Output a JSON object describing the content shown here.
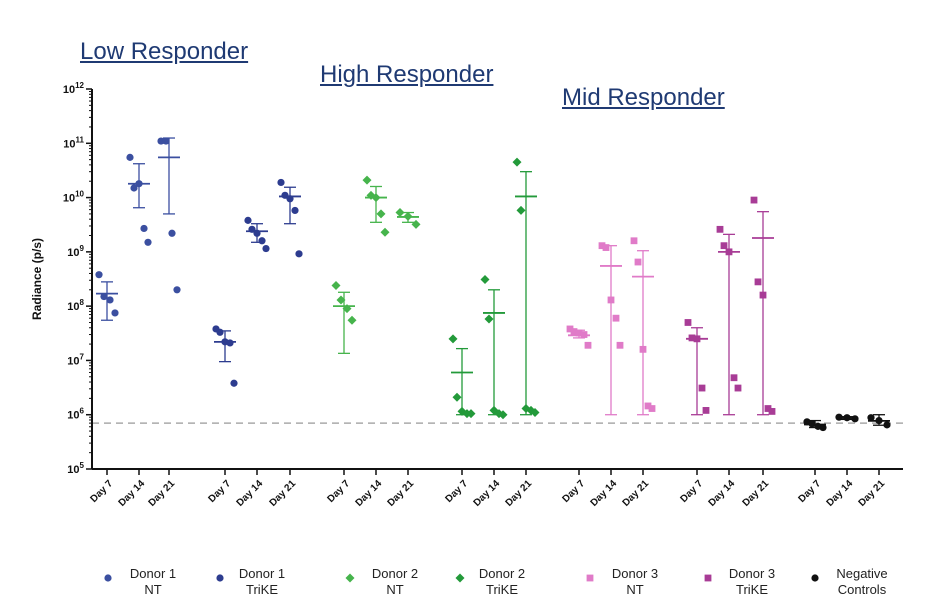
{
  "responders": [
    "Low Responder",
    "High Responder",
    "Mid Responder"
  ],
  "chart_data": {
    "type": "scatter",
    "ylabel": "Radiance (p/s)",
    "yscale": "log",
    "ylim": [
      100000,
      1000000000000
    ],
    "ytick_labels": [
      {
        "value": 100000,
        "base": "10",
        "exp": "5"
      },
      {
        "value": 1000000,
        "base": "10",
        "exp": "6"
      },
      {
        "value": 10000000,
        "base": "10",
        "exp": "7"
      },
      {
        "value": 100000000,
        "base": "10",
        "exp": "8"
      },
      {
        "value": 1000000000,
        "base": "10",
        "exp": "9"
      },
      {
        "value": 10000000000,
        "base": "10",
        "exp": "10"
      },
      {
        "value": 100000000000,
        "base": "10",
        "exp": "11"
      },
      {
        "value": 1000000000000,
        "base": "10",
        "exp": "12"
      }
    ],
    "threshold": 700000,
    "day_labels": [
      "Day 7",
      "Day 14",
      "Day 21"
    ],
    "series": [
      {
        "name": "Donor 1 NT",
        "legend": [
          "Donor 1",
          "NT"
        ],
        "color": "#3B4FA0",
        "marker": "circle",
        "groups": [
          {
            "day": "Day 7",
            "points": [
              380000000,
              150000000,
              130000000,
              75000000
            ],
            "mean": 170000000,
            "err": [
              55000000,
              280000000
            ]
          },
          {
            "day": "Day 14",
            "points": [
              55000000000,
              15000000000,
              18000000000,
              2700000000,
              1500000000
            ],
            "mean": 18000000000,
            "err": [
              6500000000,
              42000000000
            ]
          },
          {
            "day": "Day 21",
            "points": [
              110000000000,
              110000000000,
              2200000000,
              200000000
            ],
            "mean": 55000000000,
            "err": [
              5000000000,
              125000000000
            ]
          }
        ]
      },
      {
        "name": "Donor 1 TriKE",
        "legend": [
          "Donor 1",
          "TriKE"
        ],
        "color": "#2D3C8F",
        "marker": "circle",
        "groups": [
          {
            "day": "Day 7",
            "points": [
              38000000,
              33000000,
              22000000,
              21000000,
              3800000
            ],
            "mean": 22000000,
            "err": [
              9500000,
              35000000
            ]
          },
          {
            "day": "Day 14",
            "points": [
              3800000000,
              2600000000,
              2200000000,
              1600000000,
              1150000000
            ],
            "mean": 2400000000,
            "err": [
              1500000000,
              3300000000
            ]
          },
          {
            "day": "Day 21",
            "points": [
              19000000000,
              11000000000,
              9500000000,
              5800000000,
              920000000
            ],
            "mean": 10500000000,
            "err": [
              3300000000,
              15500000000
            ]
          }
        ]
      },
      {
        "name": "Donor 2 NT",
        "legend": [
          "Donor 2",
          "NT"
        ],
        "color": "#46B44C",
        "marker": "diamond",
        "groups": [
          {
            "day": "Day 7",
            "points": [
              240000000,
              130000000,
              90000000,
              55000000
            ],
            "mean": 100000000,
            "err": [
              13500000,
              180000000
            ]
          },
          {
            "day": "Day 14",
            "points": [
              21000000000,
              11000000000,
              10000000000,
              5000000000,
              2300000000
            ],
            "mean": 10000000000,
            "err": [
              3500000000,
              16000000000
            ]
          },
          {
            "day": "Day 21",
            "points": [
              5300000000,
              4500000000,
              3200000000
            ],
            "mean": 4400000000,
            "err": [
              3500000000,
              5300000000
            ]
          }
        ]
      },
      {
        "name": "Donor 2 TriKE",
        "legend": [
          "Donor 2",
          "TriKE"
        ],
        "color": "#239A3A",
        "marker": "diamond",
        "groups": [
          {
            "day": "Day 7",
            "points": [
              25000000,
              2100000,
              1150000,
              1050000,
              1050000
            ],
            "mean": 6000000,
            "err": [
              1000000,
              16500000
            ]
          },
          {
            "day": "Day 14",
            "points": [
              310000000,
              58000000,
              1200000,
              1050000,
              1000000
            ],
            "mean": 75000000,
            "err": [
              1000000,
              200000000
            ]
          },
          {
            "day": "Day 21",
            "points": [
              45000000000,
              5800000000,
              1300000,
              1200000,
              1100000
            ],
            "mean": 10500000000,
            "err": [
              1000000,
              30000000000
            ]
          }
        ]
      },
      {
        "name": "Donor 3 NT",
        "legend": [
          "Donor 3",
          "NT"
        ],
        "color": "#E07BC8",
        "marker": "square",
        "groups": [
          {
            "day": "Day 7",
            "points": [
              38000000,
              34000000,
              32000000,
              30000000,
              19000000
            ],
            "mean": 29000000,
            "err": [
              26000000,
              36000000
            ]
          },
          {
            "day": "Day 14",
            "points": [
              1300000000,
              1200000000,
              130000000,
              60000000,
              19000000
            ],
            "mean": 550000000,
            "err": [
              1000000,
              1300000000
            ]
          },
          {
            "day": "Day 21",
            "points": [
              1600000000,
              650000000,
              16000000,
              1450000,
              1300000
            ],
            "mean": 350000000,
            "err": [
              1000000,
              1050000000
            ]
          }
        ]
      },
      {
        "name": "Donor 3 TriKE",
        "legend": [
          "Donor 3",
          "TriKE"
        ],
        "color": "#A83C96",
        "marker": "square",
        "groups": [
          {
            "day": "Day 7",
            "points": [
              50000000,
              26000000,
              25000000,
              3100000,
              1200000
            ],
            "mean": 25000000,
            "err": [
              1000000,
              40000000
            ]
          },
          {
            "day": "Day 14",
            "points": [
              2600000000,
              1300000000,
              1000000000,
              4800000,
              3100000
            ],
            "mean": 1000000000,
            "err": [
              1000000,
              2100000000
            ]
          },
          {
            "day": "Day 21",
            "points": [
              9000000000,
              280000000,
              160000000,
              1300000,
              1150000
            ],
            "mean": 1800000000,
            "err": [
              1000000,
              5500000000
            ]
          }
        ]
      },
      {
        "name": "Negative Controls",
        "legend": [
          "Negative",
          "Controls"
        ],
        "color": "#111111",
        "marker": "circle",
        "groups": [
          {
            "day": "Day 7",
            "points": [
              740000,
              680000,
              610000,
              580000
            ],
            "mean": 660000,
            "err": [
              580000,
              780000
            ]
          },
          {
            "day": "Day 14",
            "points": [
              900000,
              880000,
              840000
            ],
            "mean": 870000,
            "err": [
              820000,
              920000
            ]
          },
          {
            "day": "Day 21",
            "points": [
              880000,
              780000,
              650000
            ],
            "mean": 770000,
            "err": [
              640000,
              1000000
            ]
          }
        ]
      }
    ]
  }
}
